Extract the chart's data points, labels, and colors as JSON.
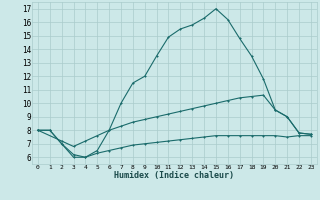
{
  "xlabel": "Humidex (Indice chaleur)",
  "bg_color": "#cce8e8",
  "grid_color": "#aacccc",
  "line_color": "#1a6b6b",
  "line1_x": [
    0,
    1,
    2,
    3,
    4,
    5,
    6,
    7,
    8,
    9,
    10,
    11,
    12,
    13,
    14,
    15,
    16,
    17,
    18,
    19,
    20,
    21,
    22,
    23
  ],
  "line1_y": [
    8.0,
    8.0,
    7.0,
    6.0,
    6.0,
    6.5,
    8.0,
    10.0,
    11.5,
    12.0,
    13.5,
    14.9,
    15.5,
    15.8,
    16.3,
    17.0,
    16.2,
    14.8,
    13.5,
    11.8,
    9.5,
    9.0,
    7.8,
    7.7
  ],
  "line2_x": [
    0,
    2,
    3,
    4,
    5,
    6,
    7,
    8,
    9,
    10,
    11,
    12,
    13,
    14,
    15,
    16,
    17,
    18,
    19,
    20,
    21,
    22,
    23
  ],
  "line2_y": [
    8.0,
    7.2,
    6.8,
    7.2,
    7.6,
    8.0,
    8.3,
    8.6,
    8.8,
    9.0,
    9.2,
    9.4,
    9.6,
    9.8,
    10.0,
    10.2,
    10.4,
    10.5,
    10.6,
    9.5,
    9.0,
    7.8,
    7.7
  ],
  "line3_x": [
    0,
    1,
    2,
    3,
    4,
    5,
    6,
    7,
    8,
    9,
    10,
    11,
    12,
    13,
    14,
    15,
    16,
    17,
    18,
    19,
    20,
    21,
    22,
    23
  ],
  "line3_y": [
    8.0,
    8.0,
    7.0,
    6.2,
    6.0,
    6.3,
    6.5,
    6.7,
    6.9,
    7.0,
    7.1,
    7.2,
    7.3,
    7.4,
    7.5,
    7.6,
    7.6,
    7.6,
    7.6,
    7.6,
    7.6,
    7.5,
    7.6,
    7.6
  ],
  "ylim": [
    5.5,
    17.5
  ],
  "xlim": [
    -0.5,
    23.5
  ],
  "yticks": [
    6,
    7,
    8,
    9,
    10,
    11,
    12,
    13,
    14,
    15,
    16,
    17
  ],
  "xticks": [
    0,
    1,
    2,
    3,
    4,
    5,
    6,
    7,
    8,
    9,
    10,
    11,
    12,
    13,
    14,
    15,
    16,
    17,
    18,
    19,
    20,
    21,
    22,
    23
  ]
}
